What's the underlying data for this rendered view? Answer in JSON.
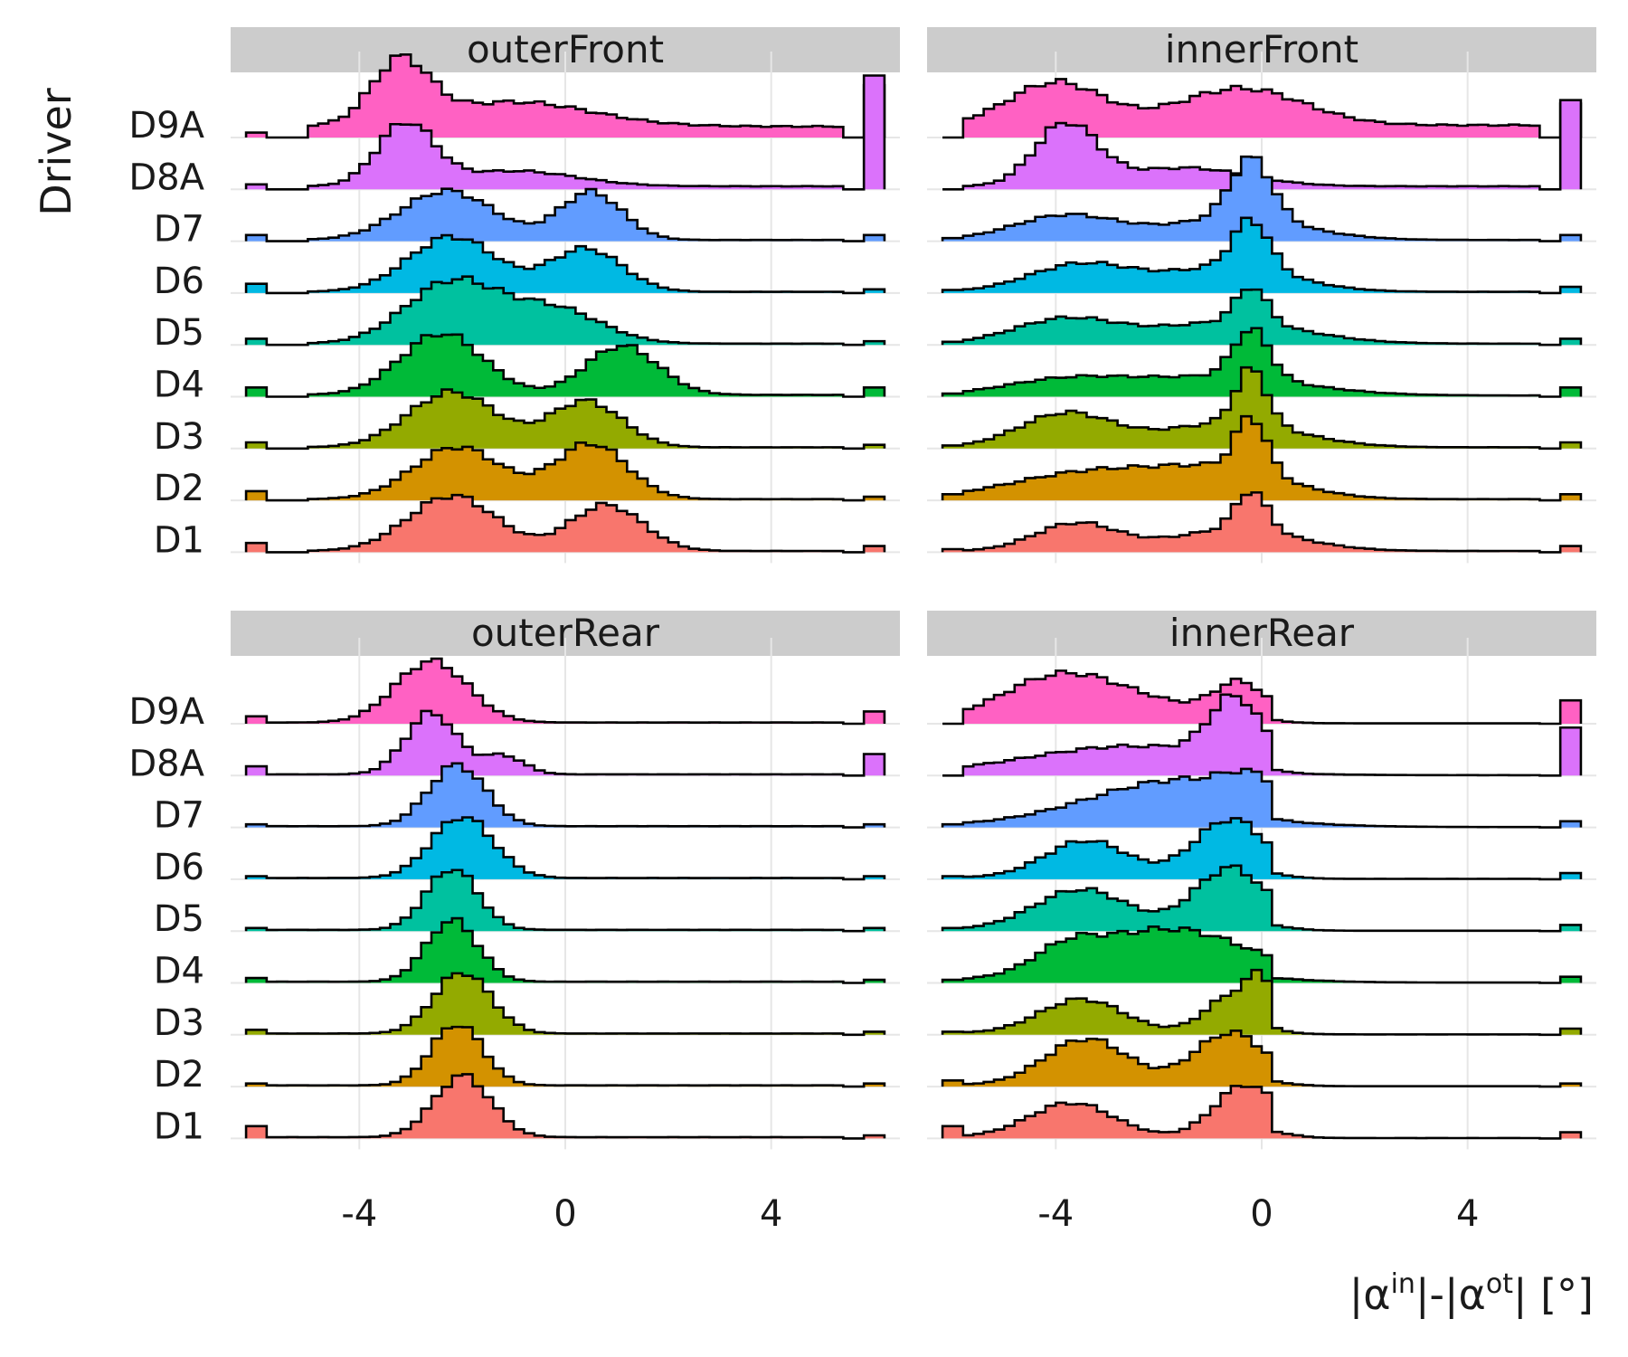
{
  "chart_data": {
    "type": "area",
    "kind": "ridgeline-histogram",
    "ylabel": "Driver",
    "xlabel": {
      "text_parts": [
        "|α",
        "in",
        "|-|α",
        "ot",
        "| [°]"
      ],
      "sup_flags": [
        false,
        true,
        false,
        true,
        false
      ]
    },
    "xlim": [
      -6.5,
      6.5
    ],
    "xticks": [
      -4,
      0,
      4
    ],
    "xtick_labels": [
      "-4",
      "0",
      "4"
    ],
    "drivers": [
      "D9A",
      "D8A",
      "D7",
      "D6",
      "D5",
      "D4",
      "D3",
      "D2",
      "D1"
    ],
    "colors": {
      "D9A": "#FF61C3",
      "D8A": "#DB72FB",
      "D7": "#619CFF",
      "D6": "#00B9E3",
      "D5": "#00C19F",
      "D4": "#00BA38",
      "D3": "#93AA00",
      "D2": "#D39200",
      "D1": "#F8766D"
    },
    "panels": [
      {
        "title": "outerFront",
        "series": {
          "D9A": {
            "peaks": [
              [
                -3.2,
                0.55,
                1
              ],
              [
                -1,
                1.5,
                0.4
              ]
            ],
            "floor": 0.18,
            "tail_lo": -5,
            "spike_lo": 0.08,
            "spike_hi": 0.85
          },
          "D8A": {
            "peaks": [
              [
                -3.1,
                0.55,
                1
              ],
              [
                -1,
                1.2,
                0.25
              ]
            ],
            "floor": 0.05,
            "tail_lo": -5,
            "spike_lo": 0.08,
            "spike_hi": 1.85
          },
          "D7": {
            "peaks": [
              [
                -2.3,
                0.9,
                0.8
              ],
              [
                0.5,
                0.6,
                0.78
              ]
            ],
            "floor": 0.02,
            "tail_lo": -5,
            "spike_lo": 0.1,
            "spike_hi": 0.1
          },
          "D6": {
            "peaks": [
              [
                -2.2,
                0.85,
                0.9
              ],
              [
                0.4,
                0.7,
                0.7
              ]
            ],
            "floor": 0.02,
            "tail_lo": -5,
            "spike_lo": 0.15,
            "spike_hi": 0.06
          },
          "D5": {
            "peaks": [
              [
                -2.2,
                0.9,
                1
              ],
              [
                -0.2,
                0.9,
                0.55
              ]
            ],
            "floor": 0.02,
            "tail_lo": -5,
            "spike_lo": 0.1,
            "spike_hi": 0.06
          },
          "D4": {
            "peaks": [
              [
                -2.4,
                0.8,
                1
              ],
              [
                1.1,
                0.7,
                0.8
              ]
            ],
            "floor": 0.03,
            "tail_lo": -5,
            "spike_lo": 0.15,
            "spike_hi": 0.15
          },
          "D3": {
            "peaks": [
              [
                -2.2,
                0.85,
                0.9
              ],
              [
                0.4,
                0.7,
                0.75
              ]
            ],
            "floor": 0.02,
            "tail_lo": -5,
            "spike_lo": 0.1,
            "spike_hi": 0.06
          },
          "D2": {
            "peaks": [
              [
                -2.1,
                0.85,
                0.85
              ],
              [
                0.5,
                0.7,
                0.9
              ]
            ],
            "floor": 0.02,
            "tail_lo": -5,
            "spike_lo": 0.15,
            "spike_hi": 0.06
          },
          "D1": {
            "peaks": [
              [
                -2.2,
                0.85,
                0.9
              ],
              [
                0.8,
                0.7,
                0.75
              ]
            ],
            "floor": 0.02,
            "tail_lo": -5,
            "spike_lo": 0.15,
            "spike_hi": 0.1
          }
        }
      },
      {
        "title": "innerFront",
        "series": {
          "D9A": {
            "peaks": [
              [
                -4,
                0.9,
                0.7
              ],
              [
                -0.4,
                1.2,
                0.6
              ]
            ],
            "floor": 0.2,
            "tail_lo": -6,
            "spike_lo": 0,
            "spike_hi": 0.55
          },
          "D8A": {
            "peaks": [
              [
                -3.8,
                0.6,
                1
              ],
              [
                -1.5,
                1.2,
                0.3
              ]
            ],
            "floor": 0.05,
            "tail_lo": -6,
            "spike_lo": 0,
            "spike_hi": 1.45
          },
          "D7": {
            "peaks": [
              [
                -3.8,
                1,
                0.4
              ],
              [
                -0.2,
                0.4,
                1
              ],
              [
                -0.5,
                1.3,
                0.35
              ]
            ],
            "floor": 0.02,
            "tail_lo": -6,
            "spike_lo": 0.05,
            "spike_hi": 0.1
          },
          "D6": {
            "peaks": [
              [
                -3.5,
                1,
                0.45
              ],
              [
                -0.2,
                0.35,
                0.8
              ],
              [
                -0.6,
                1.2,
                0.4
              ]
            ],
            "floor": 0.02,
            "tail_lo": -6,
            "spike_lo": 0.05,
            "spike_hi": 0.1
          },
          "D5": {
            "peaks": [
              [
                -3.8,
                1,
                0.4
              ],
              [
                -0.2,
                0.3,
                0.6
              ],
              [
                -0.6,
                1.4,
                0.35
              ]
            ],
            "floor": 0.02,
            "tail_lo": -6,
            "spike_lo": 0.05,
            "spike_hi": 0.1
          },
          "D4": {
            "peaks": [
              [
                -3.8,
                1.2,
                0.25
              ],
              [
                -0.2,
                0.35,
                0.8
              ],
              [
                -0.8,
                1.6,
                0.3
              ]
            ],
            "floor": 0.02,
            "tail_lo": -6,
            "spike_lo": 0.05,
            "spike_hi": 0.15
          },
          "D3": {
            "peaks": [
              [
                -3.8,
                0.9,
                0.55
              ],
              [
                -0.2,
                0.3,
                0.9
              ],
              [
                -0.6,
                1.3,
                0.4
              ]
            ],
            "floor": 0.02,
            "tail_lo": -6,
            "spike_lo": 0.05,
            "spike_hi": 0.1
          },
          "D2": {
            "peaks": [
              [
                -3.2,
                1.6,
                0.45
              ],
              [
                -0.2,
                0.3,
                0.9
              ],
              [
                -0.6,
                1.2,
                0.4
              ]
            ],
            "floor": 0.02,
            "tail_lo": -6,
            "spike_lo": 0.1,
            "spike_hi": 0.1
          },
          "D1": {
            "peaks": [
              [
                -3.6,
                0.8,
                0.45
              ],
              [
                -0.2,
                0.3,
                0.65
              ],
              [
                -0.5,
                1.2,
                0.35
              ]
            ],
            "floor": 0.02,
            "tail_lo": -6,
            "spike_lo": 0.05,
            "spike_hi": 0.1
          }
        }
      },
      {
        "title": "outerRear",
        "series": {
          "D9A": {
            "peaks": [
              [
                -2.6,
                0.7,
                1
              ]
            ],
            "floor": 0.02,
            "tail_lo": -6,
            "spike_lo": 0.12,
            "spike_hi": 0.2
          },
          "D8A": {
            "peaks": [
              [
                -2.6,
                0.5,
                1
              ],
              [
                -1.2,
                0.4,
                0.3
              ]
            ],
            "floor": 0.02,
            "tail_lo": -6,
            "spike_lo": 0.15,
            "spike_hi": 0.35
          },
          "D7": {
            "peaks": [
              [
                -2.1,
                0.55,
                1
              ]
            ],
            "floor": 0.02,
            "tail_lo": -6,
            "spike_lo": 0.05,
            "spike_hi": 0.05
          },
          "D6": {
            "peaks": [
              [
                -2,
                0.6,
                1
              ]
            ],
            "floor": 0.02,
            "tail_lo": -6,
            "spike_lo": 0.05,
            "spike_hi": 0.05
          },
          "D5": {
            "peaks": [
              [
                -2.2,
                0.5,
                1
              ]
            ],
            "floor": 0.02,
            "tail_lo": -6,
            "spike_lo": 0.05,
            "spike_hi": 0.05
          },
          "D4": {
            "peaks": [
              [
                -2.2,
                0.5,
                1
              ]
            ],
            "floor": 0.02,
            "tail_lo": -6,
            "spike_lo": 0.08,
            "spike_hi": 0.05
          },
          "D3": {
            "peaks": [
              [
                -2,
                0.55,
                1
              ]
            ],
            "floor": 0.02,
            "tail_lo": -6,
            "spike_lo": 0.08,
            "spike_hi": 0.05
          },
          "D2": {
            "peaks": [
              [
                -2.1,
                0.5,
                1
              ]
            ],
            "floor": 0.02,
            "tail_lo": -6,
            "spike_lo": 0.05,
            "spike_hi": 0.05
          },
          "D1": {
            "peaks": [
              [
                -2,
                0.55,
                1
              ]
            ],
            "floor": 0.02,
            "tail_lo": -6,
            "spike_lo": 0.2,
            "spike_hi": 0.05
          }
        }
      },
      {
        "title": "innerRear",
        "series": {
          "D9A": {
            "peaks": [
              [
                -4,
                1.1,
                0.6
              ],
              [
                -0.4,
                0.5,
                0.55
              ],
              [
                -2.5,
                1.5,
                0.3
              ]
            ],
            "floor": 0.03,
            "tail_lo": -6,
            "spike_lo": 0,
            "spike_hi": 0.38,
            "drop": 0.2
          },
          "D8A": {
            "peaks": [
              [
                -0.5,
                0.5,
                1
              ],
              [
                -2.5,
                2,
                0.45
              ]
            ],
            "floor": 0.03,
            "tail_lo": -6,
            "spike_lo": 0,
            "spike_hi": 0.78,
            "drop": 0.2
          },
          "D7": {
            "peaks": [
              [
                -1.5,
                1.8,
                0.75
              ],
              [
                -0.2,
                0.5,
                0.3
              ]
            ],
            "floor": 0.03,
            "tail_lo": -6,
            "spike_lo": 0.05,
            "spike_hi": 0.1,
            "drop": 0.2
          },
          "D6": {
            "peaks": [
              [
                -3.4,
                0.8,
                0.6
              ],
              [
                -0.6,
                0.7,
                0.95
              ]
            ],
            "floor": 0.03,
            "tail_lo": -6,
            "spike_lo": 0.05,
            "spike_hi": 0.1,
            "drop": 0.2
          },
          "D5": {
            "peaks": [
              [
                -3.5,
                0.9,
                0.65
              ],
              [
                -0.6,
                0.7,
                1
              ]
            ],
            "floor": 0.03,
            "tail_lo": -6,
            "spike_lo": 0.05,
            "spike_hi": 0.1,
            "drop": 0.2
          },
          "D4": {
            "peaks": [
              [
                -1.8,
                1.6,
                0.85
              ],
              [
                -3.8,
                0.6,
                0.3
              ]
            ],
            "floor": 0.03,
            "tail_lo": -6,
            "spike_lo": 0.05,
            "spike_hi": 0.1,
            "drop": 0.2
          },
          "D3": {
            "peaks": [
              [
                -3.5,
                0.8,
                0.55
              ],
              [
                -0.4,
                0.6,
                0.7
              ],
              [
                0,
                0.2,
                0.45
              ]
            ],
            "floor": 0.03,
            "tail_lo": -6,
            "spike_lo": 0.05,
            "spike_hi": 0.1,
            "drop": 0.2
          },
          "D2": {
            "peaks": [
              [
                -3.4,
                0.8,
                0.75
              ],
              [
                -0.6,
                0.7,
                0.85
              ]
            ],
            "floor": 0.03,
            "tail_lo": -6,
            "spike_lo": 0.1,
            "spike_hi": 0.05,
            "drop": 0.2
          },
          "D1": {
            "peaks": [
              [
                -3.7,
                0.8,
                0.55
              ],
              [
                -0.3,
                0.6,
                0.85
              ]
            ],
            "floor": 0.03,
            "tail_lo": -6,
            "spike_lo": 0.2,
            "spike_hi": 0.1,
            "drop": 0.2
          }
        }
      }
    ]
  }
}
